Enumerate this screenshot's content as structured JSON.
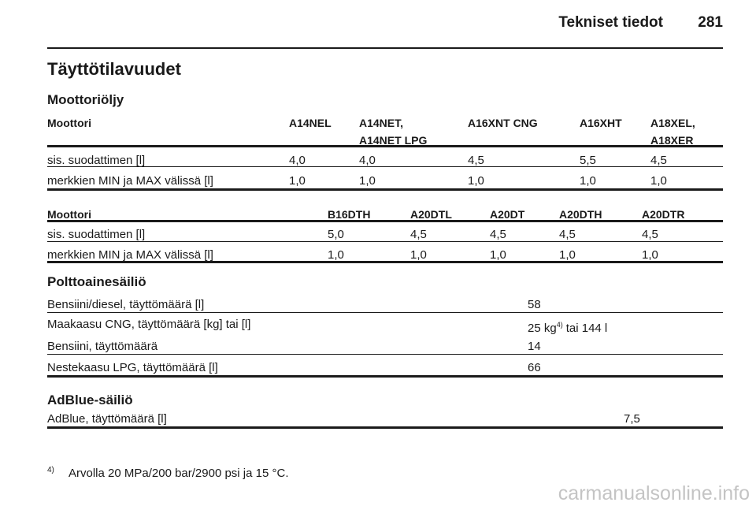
{
  "header": {
    "section": "Tekniset tiedot",
    "page": "281"
  },
  "title": "Täyttötilavuudet",
  "engine_oil": {
    "heading": "Moottoriöljy",
    "tables": [
      {
        "columns": [
          "Moottori",
          "A14NEL",
          "A14NET,\nA14NET LPG",
          "A16XNT CNG",
          "A16XHT",
          "A18XEL,\nA18XER"
        ],
        "rows": [
          [
            "sis. suodattimen [l]",
            "4,0",
            "4,0",
            "4,5",
            "5,5",
            "4,5"
          ],
          [
            "merkkien MIN ja MAX välissä [l]",
            "1,0",
            "1,0",
            "1,0",
            "1,0",
            "1,0"
          ]
        ]
      },
      {
        "columns": [
          "Moottori",
          "B16DTH",
          "A20DTL",
          "A20DT",
          "A20DTH",
          "A20DTR"
        ],
        "rows": [
          [
            "sis. suodattimen [l]",
            "5,0",
            "4,5",
            "4,5",
            "4,5",
            "4,5"
          ],
          [
            "merkkien MIN ja MAX välissä [l]",
            "1,0",
            "1,0",
            "1,0",
            "1,0",
            "1,0"
          ]
        ]
      }
    ]
  },
  "fuel_tank": {
    "heading": "Polttoainesäiliö",
    "rows": [
      [
        "Bensiini/diesel, täyttömäärä [l]",
        "58"
      ],
      [
        "Maakaasu CNG, täyttömäärä [kg] tai [l]",
        {
          "text": "25 kg",
          "footnote": "4)",
          "rest": "tai 144 l"
        }
      ],
      [
        "Bensiini, täyttömäärä",
        "14"
      ],
      [
        "Nestekaasu LPG, täyttömäärä [l]",
        "66"
      ]
    ]
  },
  "adblue": {
    "heading": "AdBlue-säiliö",
    "rows": [
      [
        "AdBlue, täyttömäärä [l]",
        "7,5"
      ]
    ]
  },
  "footnote": {
    "mark": "4)",
    "text": "Arvolla 20 MPa/200 bar/2900 psi ja 15 °C."
  },
  "watermark": "carmanualsonline.info"
}
